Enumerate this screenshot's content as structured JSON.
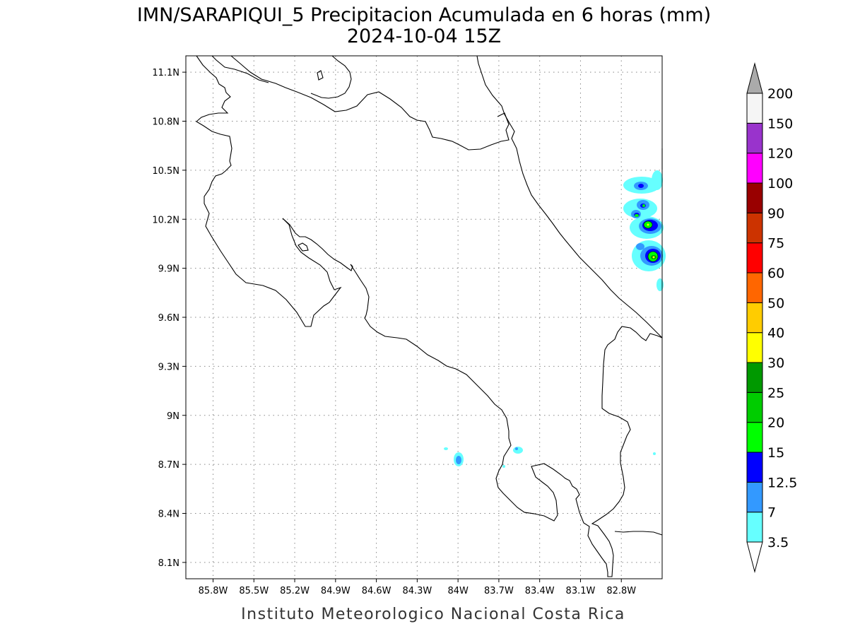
{
  "title_line1": "IMN/SARAPIQUI_5 Precipitacion Acumulada en 6 horas (mm)",
  "title_line2": "2024-10-04 15Z",
  "footer": "Instituto Meteorologico Nacional Costa Rica",
  "map": {
    "lon_range": [
      -86.0,
      -82.5
    ],
    "lat_range": [
      8.0,
      11.2
    ],
    "lon_ticks": [
      {
        "value": -85.8,
        "label": "85.8W"
      },
      {
        "value": -85.5,
        "label": "85.5W"
      },
      {
        "value": -85.2,
        "label": "85.2W"
      },
      {
        "value": -84.9,
        "label": "84.9W"
      },
      {
        "value": -84.6,
        "label": "84.6W"
      },
      {
        "value": -84.3,
        "label": "84.3W"
      },
      {
        "value": -84.0,
        "label": "84W"
      },
      {
        "value": -83.7,
        "label": "83.7W"
      },
      {
        "value": -83.4,
        "label": "83.4W"
      },
      {
        "value": -83.1,
        "label": "83.1W"
      },
      {
        "value": -82.8,
        "label": "82.8W"
      }
    ],
    "lat_ticks": [
      {
        "value": 11.1,
        "label": "11.1N"
      },
      {
        "value": 10.8,
        "label": "10.8N"
      },
      {
        "value": 10.5,
        "label": "10.5N"
      },
      {
        "value": 10.2,
        "label": "10.2N"
      },
      {
        "value": 9.9,
        "label": "9.9N"
      },
      {
        "value": 9.6,
        "label": "9.6N"
      },
      {
        "value": 9.3,
        "label": "9.3N"
      },
      {
        "value": 9.0,
        "label": "9N"
      },
      {
        "value": 8.7,
        "label": "8.7N"
      },
      {
        "value": 8.4,
        "label": "8.4N"
      },
      {
        "value": 8.1,
        "label": "8.1N"
      }
    ],
    "grid": "dotted",
    "precip_cells": [
      {
        "lon": -82.55,
        "lat": 10.02,
        "level": "25-30"
      },
      {
        "lon": -82.57,
        "lat": 10.24,
        "level": "20-25"
      },
      {
        "lon": -82.62,
        "lat": 10.29,
        "level": "15-20"
      },
      {
        "lon": -82.6,
        "lat": 10.47,
        "level": "12.5-15"
      },
      {
        "lon": -84.0,
        "lat": 8.76,
        "level": "7-12.5"
      },
      {
        "lon": -83.58,
        "lat": 8.82,
        "level": "3.5-7"
      }
    ]
  },
  "colorbar": {
    "levels": [
      {
        "label": "3.5",
        "color": "#66ffff"
      },
      {
        "label": "7",
        "color": "#3399ff"
      },
      {
        "label": "12.5",
        "color": "#0000ff"
      },
      {
        "label": "15",
        "color": "#00ff00"
      },
      {
        "label": "20",
        "color": "#00cc00"
      },
      {
        "label": "25",
        "color": "#009900"
      },
      {
        "label": "30",
        "color": "#ffff00"
      },
      {
        "label": "40",
        "color": "#ffcc00"
      },
      {
        "label": "50",
        "color": "#ff6600"
      },
      {
        "label": "60",
        "color": "#ff0000"
      },
      {
        "label": "75",
        "color": "#cc3300"
      },
      {
        "label": "90",
        "color": "#990000"
      },
      {
        "label": "100",
        "color": "#ff00ff"
      },
      {
        "label": "120",
        "color": "#9933cc"
      },
      {
        "label": "150",
        "color": "#f5f5f5"
      },
      {
        "label": "200",
        "color": "#aaaaaa"
      }
    ]
  }
}
